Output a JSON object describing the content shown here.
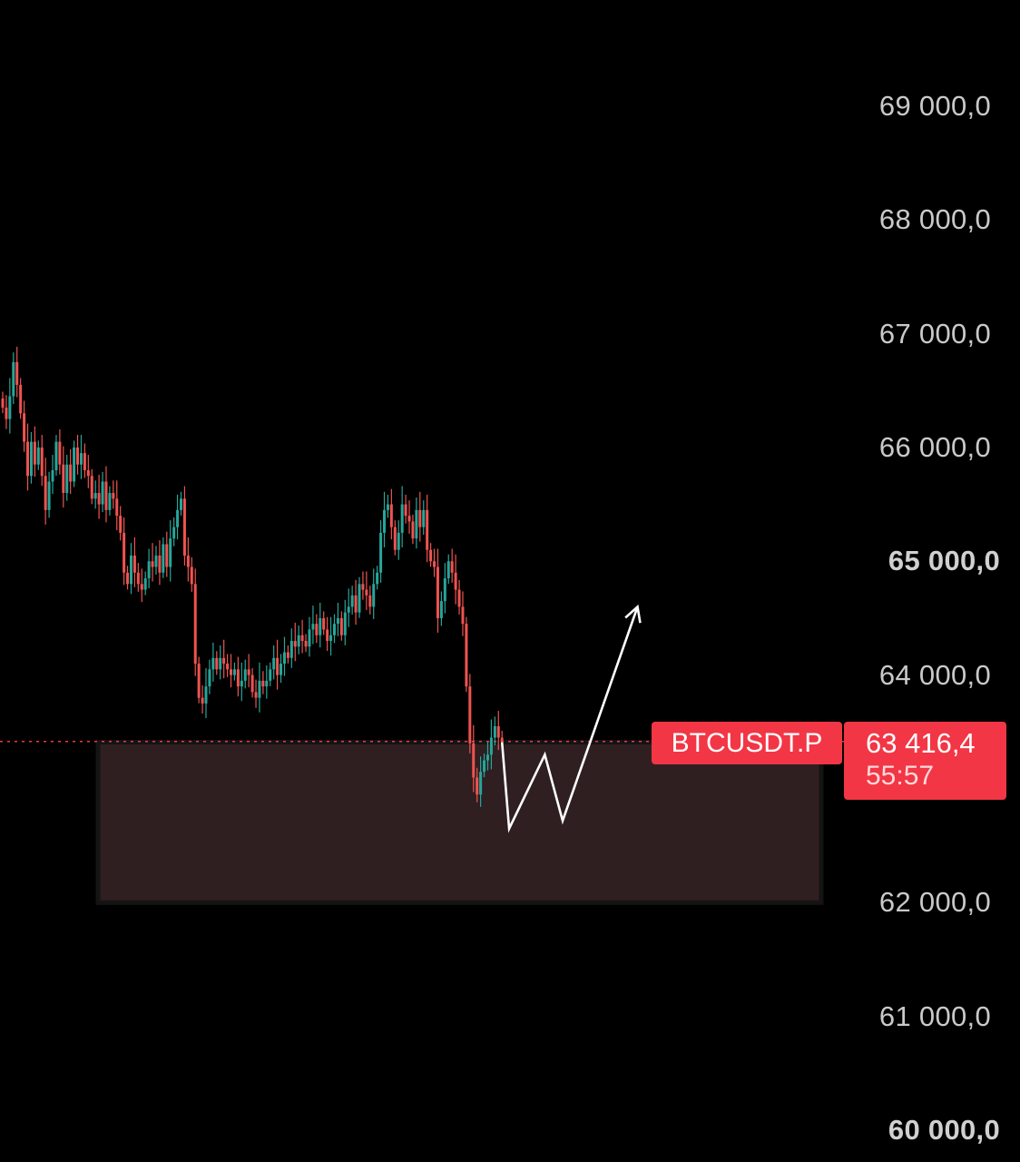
{
  "colors": {
    "background": "#000000",
    "up": "#26a69a",
    "down": "#ef5350",
    "zone_fill": "#2f1f21",
    "zone_border": "#141414",
    "price_line": "#f23645",
    "drawing": "#ffffff",
    "axis_text": "#c9c9c9"
  },
  "chart_data": {
    "type": "candlestick",
    "symbol": "BTCUSDT.P",
    "ylim": [
      59800,
      70200
    ],
    "y_ticks": [
      {
        "label": "69 000,0",
        "value": 69000,
        "major": false
      },
      {
        "label": "68 000,0",
        "value": 68000,
        "major": false
      },
      {
        "label": "67 000,0",
        "value": 67000,
        "major": false
      },
      {
        "label": "66 000,0",
        "value": 66000,
        "major": false
      },
      {
        "label": "65 000,0",
        "value": 65000,
        "major": true
      },
      {
        "label": "64 000,0",
        "value": 64000,
        "major": false
      },
      {
        "label": "62 000,0",
        "value": 62000,
        "major": false
      },
      {
        "label": "61 000,0",
        "value": 61000,
        "major": false
      },
      {
        "label": "60 000,0",
        "value": 60000,
        "major": true
      }
    ],
    "last_price": {
      "value": 63416.4,
      "label": "63 416,4",
      "countdown": "55:57"
    },
    "zone": {
      "top": 63410,
      "bottom": 62000
    },
    "projection": [
      {
        "bar": 140,
        "price": 63410
      },
      {
        "bar": 142,
        "price": 62650
      },
      {
        "bar": 152,
        "price": 63300
      },
      {
        "bar": 157,
        "price": 62720
      },
      {
        "bar": 178,
        "price": 64600
      }
    ],
    "closes": [
      66350,
      66250,
      66450,
      66750,
      66550,
      66300,
      66050,
      65750,
      66050,
      65850,
      66000,
      65750,
      65450,
      65700,
      65800,
      66050,
      65850,
      65600,
      65850,
      65700,
      66000,
      65850,
      65950,
      65800,
      65750,
      65550,
      65600,
      65500,
      65700,
      65450,
      65600,
      65550,
      65400,
      65250,
      64900,
      64800,
      65050,
      64900,
      64800,
      64750,
      64850,
      65000,
      64950,
      65050,
      64900,
      65150,
      64950,
      65200,
      65300,
      65450,
      65550,
      65050,
      64950,
      64800,
      64100,
      63800,
      63750,
      63900,
      64050,
      64150,
      64050,
      64150,
      64100,
      64050,
      64000,
      64050,
      63900,
      63950,
      64050,
      64000,
      63850,
      63800,
      63950,
      63900,
      63950,
      64050,
      64150,
      64000,
      64100,
      64200,
      64150,
      64300,
      64250,
      64350,
      64300,
      64250,
      64400,
      64450,
      64350,
      64500,
      64400,
      64300,
      64350,
      64450,
      64500,
      64350,
      64550,
      64600,
      64700,
      64550,
      64800,
      64750,
      64700,
      64600,
      64800,
      64900,
      65250,
      65450,
      65500,
      65300,
      65100,
      65250,
      65500,
      65400,
      65350,
      65200,
      65450,
      65300,
      65450,
      65100,
      65000,
      64950,
      64500,
      64650,
      64850,
      65000,
      64900,
      64750,
      64600,
      64450,
      63900,
      63400,
      63100,
      62950,
      63150,
      63250,
      63300,
      63450,
      63550,
      63450,
      63416
    ]
  }
}
